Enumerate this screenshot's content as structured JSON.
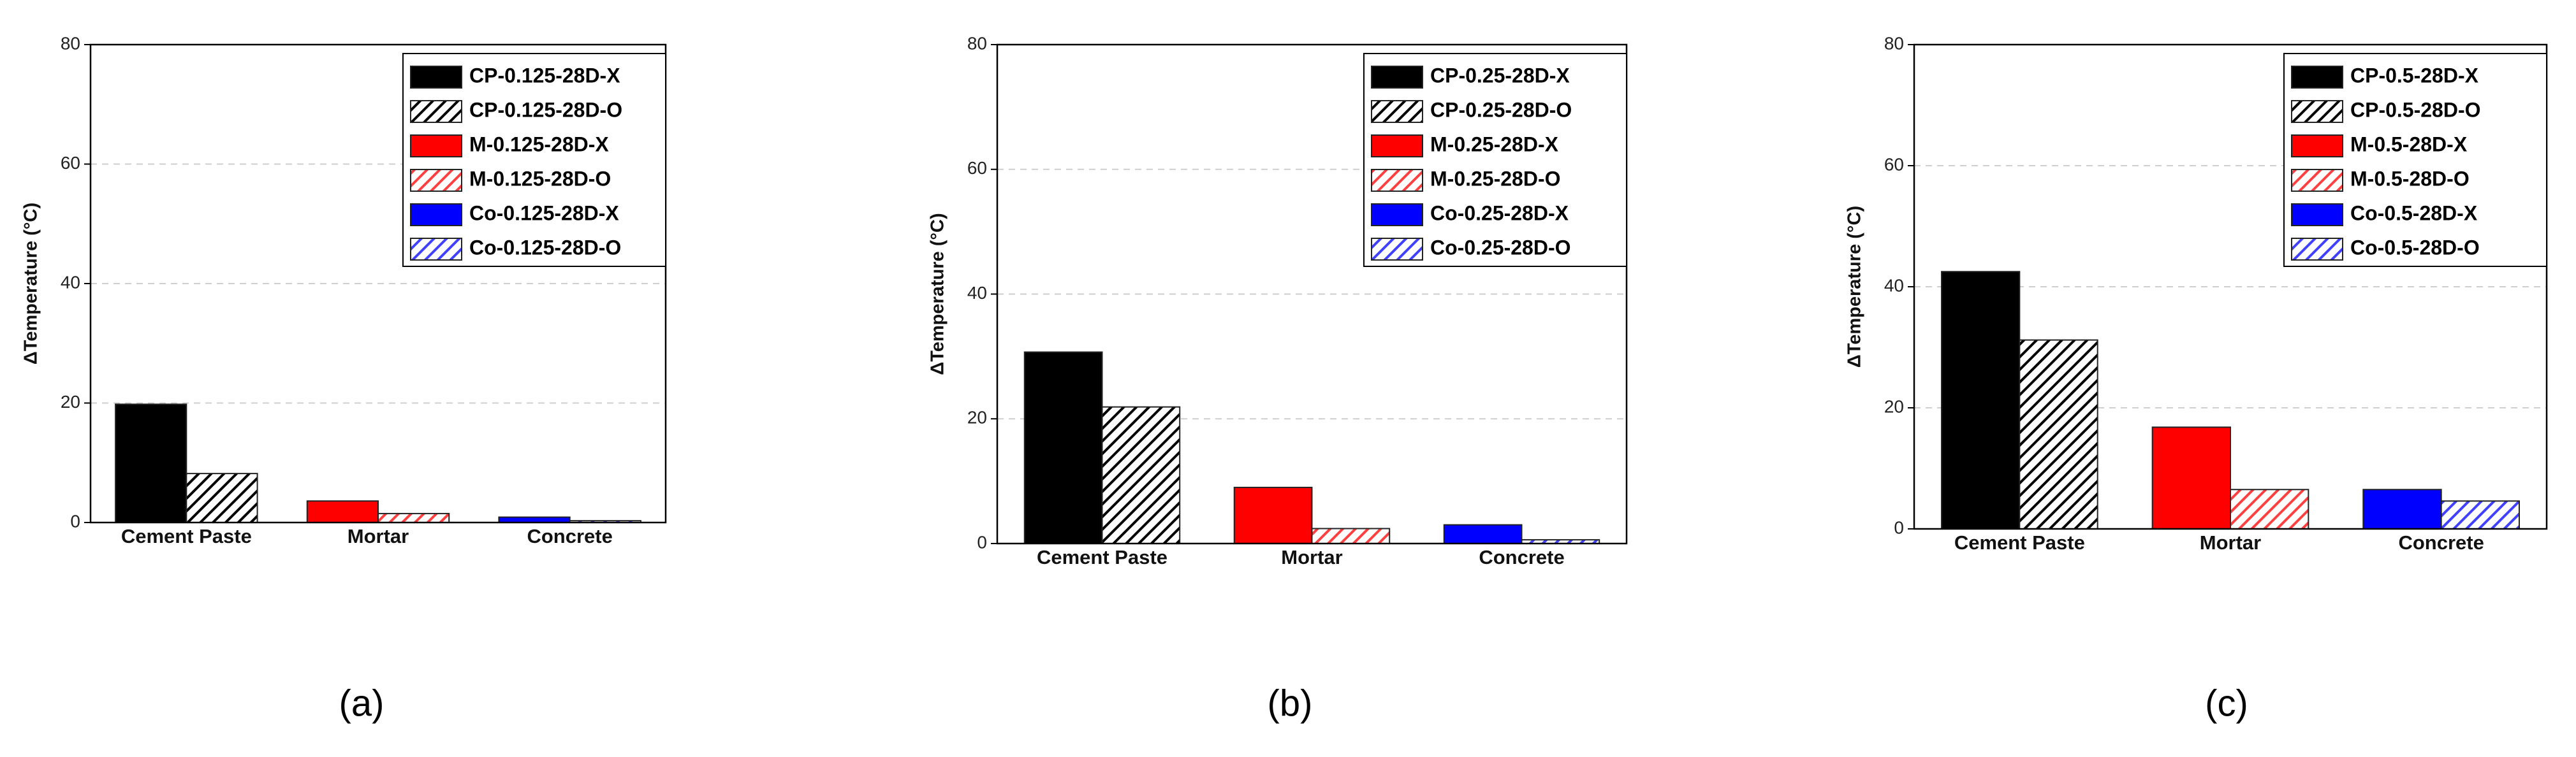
{
  "chart_data": [
    {
      "type": "bar",
      "caption": "(a)",
      "y_label": "ΔTemperature (°C)",
      "categories": [
        "Cement Paste",
        "Mortar",
        "Concrete"
      ],
      "ylim": [
        0,
        80
      ],
      "yticks": [
        0,
        20,
        40,
        60,
        80
      ],
      "grid": true,
      "legend": "upper right",
      "series": [
        {
          "name": "CP-0.125-28D-X",
          "color": "#000000",
          "hatch": false,
          "values": [
            19.8,
            null,
            null
          ]
        },
        {
          "name": "CP-0.125-28D-O",
          "color": "#000000",
          "hatch": true,
          "values": [
            8.2,
            null,
            null
          ]
        },
        {
          "name": "M-0.125-28D-X",
          "color": "#ff0000",
          "hatch": false,
          "values": [
            null,
            3.6,
            null
          ]
        },
        {
          "name": "M-0.125-28D-O",
          "color": "#ff0000",
          "hatch": true,
          "values": [
            null,
            1.5,
            null
          ]
        },
        {
          "name": "Co-0.125-28D-X",
          "color": "#0000ff",
          "hatch": false,
          "values": [
            null,
            null,
            0.9
          ]
        },
        {
          "name": "Co-0.125-28D-O",
          "color": "#0000ff",
          "hatch": true,
          "values": [
            null,
            null,
            0.3
          ]
        }
      ]
    },
    {
      "type": "bar",
      "caption": "(b)",
      "y_label": "ΔTemperature (°C)",
      "categories": [
        "Cement Paste",
        "Mortar",
        "Concrete"
      ],
      "ylim": [
        0,
        80
      ],
      "yticks": [
        0,
        20,
        40,
        60,
        80
      ],
      "grid": true,
      "legend": "upper right",
      "series": [
        {
          "name": "CP-0.25-28D-X",
          "color": "#000000",
          "hatch": false,
          "values": [
            30.7,
            null,
            null
          ]
        },
        {
          "name": "CP-0.25-28D-O",
          "color": "#000000",
          "hatch": true,
          "values": [
            21.9,
            null,
            null
          ]
        },
        {
          "name": "M-0.25-28D-X",
          "color": "#ff0000",
          "hatch": false,
          "values": [
            null,
            9.0,
            null
          ]
        },
        {
          "name": "M-0.25-28D-O",
          "color": "#ff0000",
          "hatch": true,
          "values": [
            null,
            2.4,
            null
          ]
        },
        {
          "name": "Co-0.25-28D-X",
          "color": "#0000ff",
          "hatch": false,
          "values": [
            null,
            null,
            3.0
          ]
        },
        {
          "name": "Co-0.25-28D-O",
          "color": "#0000ff",
          "hatch": true,
          "values": [
            null,
            null,
            0.6
          ]
        }
      ]
    },
    {
      "type": "bar",
      "caption": "(c)",
      "y_label": "ΔTemperature (°C)",
      "categories": [
        "Cement Paste",
        "Mortar",
        "Concrete"
      ],
      "ylim": [
        0,
        80
      ],
      "yticks": [
        0,
        20,
        40,
        60,
        80
      ],
      "grid": true,
      "legend": "upper right",
      "series": [
        {
          "name": "CP-0.5-28D-X",
          "color": "#000000",
          "hatch": false,
          "values": [
            42.5,
            null,
            null
          ]
        },
        {
          "name": "CP-0.5-28D-O",
          "color": "#000000",
          "hatch": true,
          "values": [
            31.2,
            null,
            null
          ]
        },
        {
          "name": "M-0.5-28D-X",
          "color": "#ff0000",
          "hatch": false,
          "values": [
            null,
            16.8,
            null
          ]
        },
        {
          "name": "M-0.5-28D-O",
          "color": "#ff0000",
          "hatch": true,
          "values": [
            null,
            6.5,
            null
          ]
        },
        {
          "name": "Co-0.5-28D-X",
          "color": "#0000ff",
          "hatch": false,
          "values": [
            null,
            null,
            6.5
          ]
        },
        {
          "name": "Co-0.5-28D-O",
          "color": "#0000ff",
          "hatch": true,
          "values": [
            null,
            null,
            4.6
          ]
        }
      ]
    }
  ]
}
